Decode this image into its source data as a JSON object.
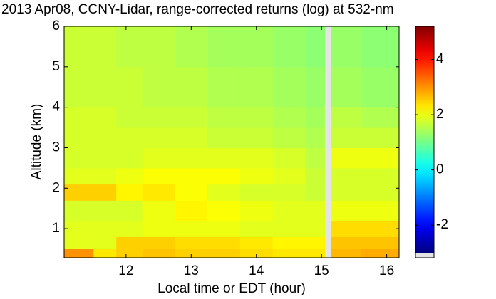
{
  "chart_data": {
    "type": "heatmap",
    "title": "2013 Apr08, CCNY-Lidar, range-corrected returns (log) at 532-nm",
    "x_label": "Local time or EDT (hour)",
    "y_label": "Altitude (km)",
    "x_edges": [
      11.05,
      11.5,
      11.85,
      12.25,
      12.75,
      13.25,
      13.75,
      14.25,
      14.75,
      15.05,
      15.15,
      15.6,
      16.19
    ],
    "y_edges": [
      0.28,
      0.5,
      0.8,
      1.2,
      1.7,
      2.1,
      2.5,
      3.0,
      3.5,
      4.0,
      5.0,
      6.0
    ],
    "z": [
      [
        3.0,
        2.3,
        2.5,
        2.6,
        2.5,
        2.5,
        2.4,
        2.3,
        2.3,
        null,
        2.7,
        2.8
      ],
      [
        1.9,
        1.9,
        2.5,
        2.5,
        2.4,
        2.4,
        2.3,
        2.2,
        2.2,
        null,
        2.6,
        2.6
      ],
      [
        1.9,
        1.9,
        1.9,
        2.0,
        2.0,
        2.0,
        1.9,
        1.9,
        1.9,
        null,
        2.4,
        2.4
      ],
      [
        1.8,
        1.8,
        1.8,
        2.0,
        2.2,
        2.1,
        2.0,
        1.9,
        1.9,
        null,
        2.0,
        2.0
      ],
      [
        2.5,
        2.5,
        2.2,
        2.3,
        2.1,
        1.9,
        1.8,
        1.8,
        1.7,
        null,
        1.8,
        1.8
      ],
      [
        1.9,
        1.9,
        2.0,
        2.1,
        2.1,
        2.1,
        2.0,
        1.9,
        1.7,
        null,
        1.8,
        1.8
      ],
      [
        1.8,
        1.8,
        1.8,
        1.9,
        1.9,
        1.9,
        1.9,
        1.8,
        1.6,
        null,
        2.0,
        2.0
      ],
      [
        1.8,
        1.8,
        1.8,
        1.8,
        1.8,
        1.7,
        1.7,
        1.6,
        1.5,
        null,
        1.7,
        1.7
      ],
      [
        1.8,
        1.8,
        1.7,
        1.7,
        1.7,
        1.6,
        1.6,
        1.5,
        1.4,
        null,
        1.6,
        1.5
      ],
      [
        1.7,
        1.7,
        1.7,
        1.6,
        1.6,
        1.5,
        1.5,
        1.4,
        1.3,
        null,
        1.4,
        1.3
      ],
      [
        1.7,
        1.7,
        1.6,
        1.6,
        1.5,
        1.4,
        1.4,
        1.3,
        1.2,
        null,
        1.3,
        1.2
      ]
    ],
    "colormap": "jet",
    "xlim": [
      11.05,
      16.19
    ],
    "xticks": [
      12,
      13,
      14,
      15,
      16
    ],
    "ylim": [
      0.28,
      6
    ],
    "yticks": [
      1,
      2,
      3,
      4,
      5,
      6
    ],
    "clim": [
      -3.0,
      5.2
    ],
    "cticks": [
      -2,
      0,
      2,
      4
    ]
  }
}
